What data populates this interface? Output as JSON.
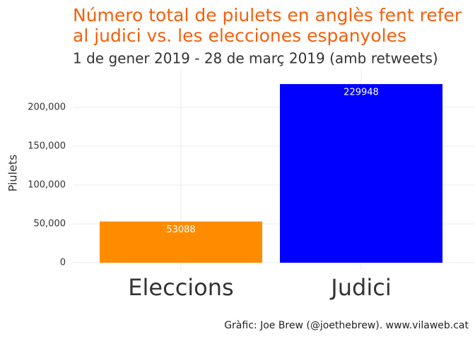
{
  "chart_data": {
    "type": "bar",
    "title": [
      "Número total de piulets en anglès fent refer",
      "al judici vs. les elecciones espanyoles"
    ],
    "subtitle": "1 de gener 2019 - 28 de març 2019 (amb retweets)",
    "y_label": "Piulets",
    "caption": "Gràfic: Joe Brew (@joethebrew). www.vilaweb.cat",
    "categories": [
      "Eleccions",
      "Judici"
    ],
    "values": [
      53088,
      229948
    ],
    "colors": [
      "#FF8C00",
      "#0000FF"
    ],
    "ylim": [
      -10000,
      250000
    ],
    "yticks": [
      0,
      {
        "value": 50000,
        "label": "50,000"
      },
      {
        "value": 100000,
        "label": "100,000"
      },
      {
        "value": 150000,
        "label": "150,000"
      },
      {
        "value": 200000,
        "label": "200,000"
      }
    ],
    "grid": true
  }
}
